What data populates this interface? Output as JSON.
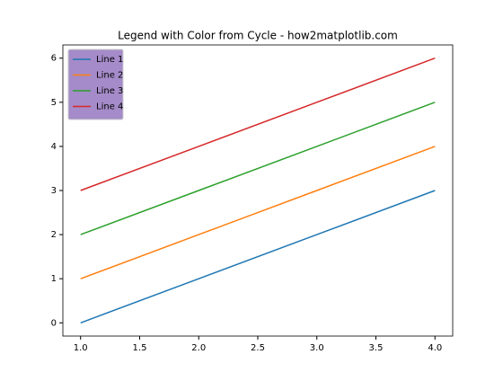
{
  "chart_data": {
    "type": "line",
    "title": "Legend with Color from Cycle - how2matplotlib.com",
    "x": [
      1,
      2,
      3,
      4
    ],
    "series": [
      {
        "name": "Line 1",
        "color": "#1f77b4",
        "values": [
          0,
          1,
          2,
          3
        ]
      },
      {
        "name": "Line 2",
        "color": "#ff7f0e",
        "values": [
          1,
          2,
          3,
          4
        ]
      },
      {
        "name": "Line 3",
        "color": "#2ca02c",
        "values": [
          2,
          3,
          4,
          5
        ]
      },
      {
        "name": "Line 4",
        "color": "#d62728",
        "values": [
          3,
          4,
          5,
          6
        ]
      }
    ],
    "xlim": [
      0.85,
      4.15
    ],
    "xticks": [
      {
        "value": 1,
        "label": "1.0"
      },
      {
        "value": 1.5,
        "label": "1.5"
      },
      {
        "value": 2,
        "label": "2.0"
      },
      {
        "value": 2.5,
        "label": "2.5"
      },
      {
        "value": 3,
        "label": "3.0"
      },
      {
        "value": 3.5,
        "label": "3.5"
      },
      {
        "value": 4,
        "label": "4.0"
      }
    ],
    "ylim": [
      -0.3,
      6.3
    ],
    "yticks": [
      0,
      1,
      2,
      3,
      4,
      5,
      6
    ],
    "legend": "upper left",
    "legend_color": "#a58bc9"
  }
}
